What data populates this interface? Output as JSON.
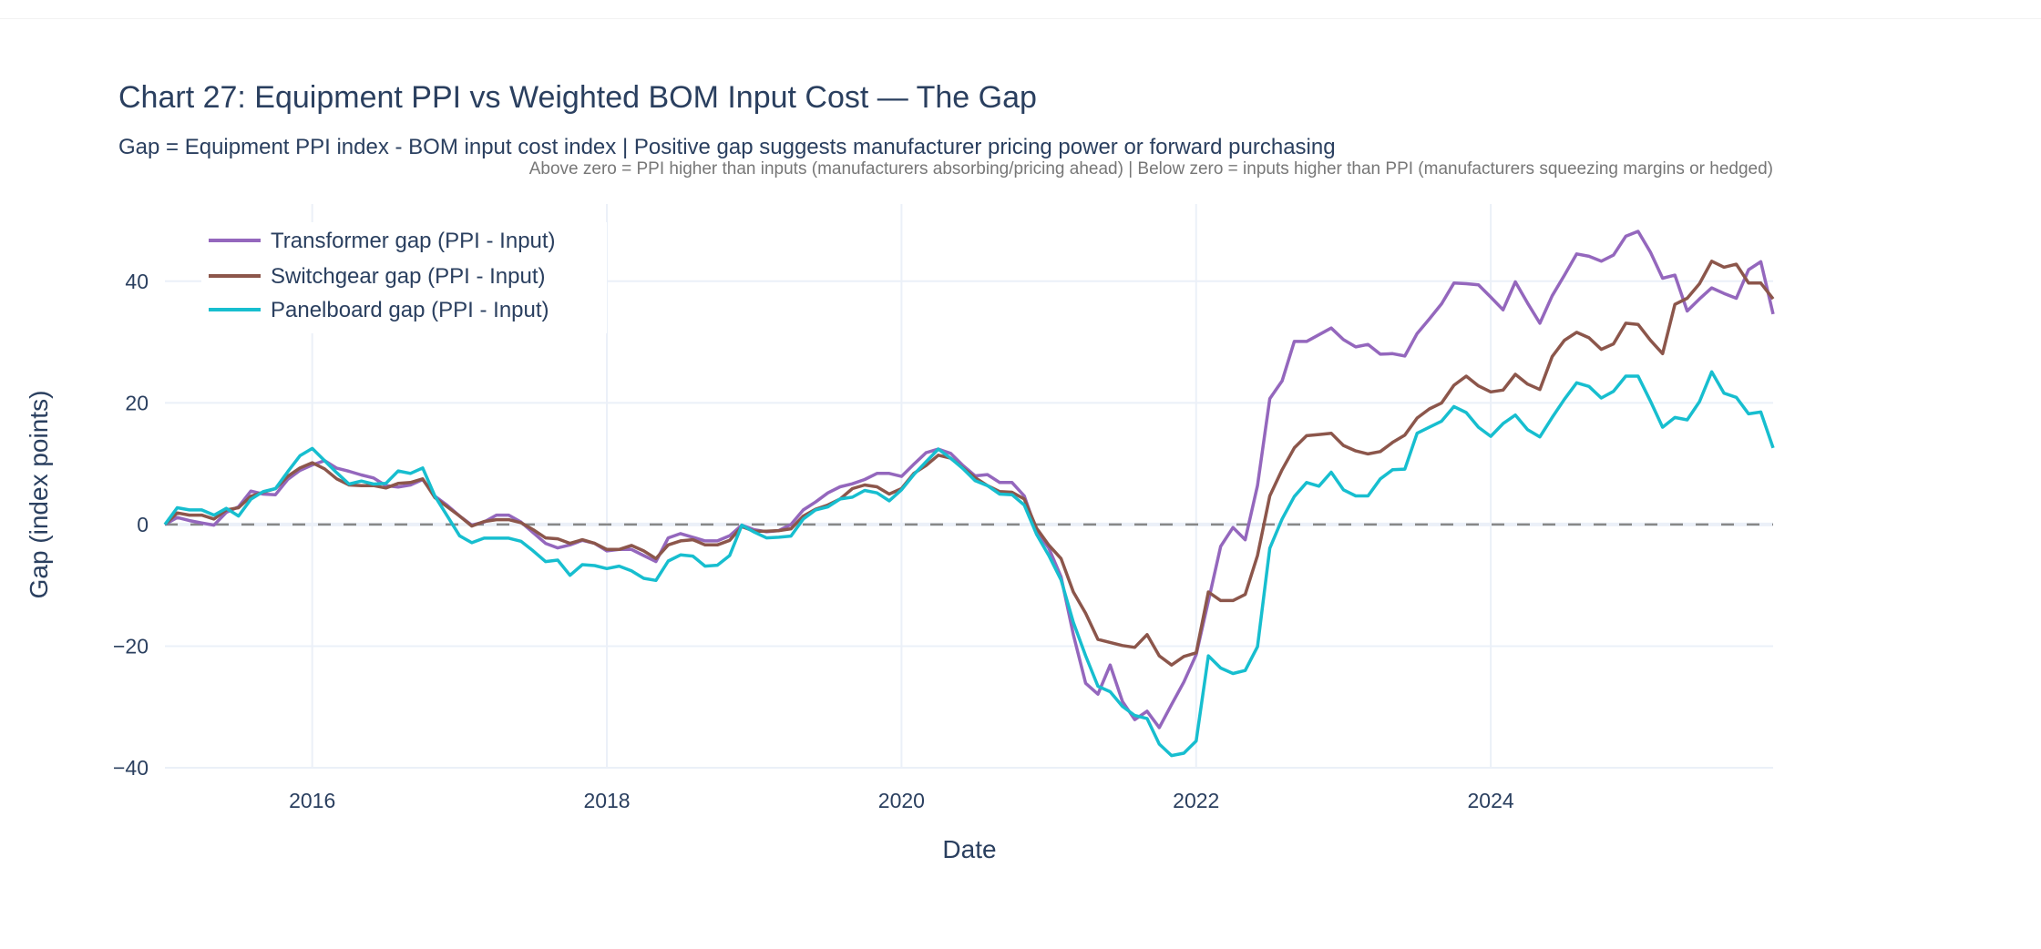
{
  "chart_data": {
    "type": "line",
    "title": "Chart 27: Equipment PPI vs Weighted BOM Input Cost — The Gap",
    "subtitle": "Gap = Equipment PPI index - BOM input cost index | Positive gap suggests manufacturer pricing power or forward purchasing",
    "annotation": "Above zero = PPI higher than inputs (manufacturers absorbing/pricing ahead) | Below zero = inputs higher than PPI (manufacturers squeezing margins or hedged)",
    "xlabel": "Date",
    "ylabel": "Gap (index points)",
    "x_start": "2015-01",
    "x_frequency": "monthly",
    "x_ticks": [
      "2016",
      "2018",
      "2020",
      "2022",
      "2024"
    ],
    "y_ticks": [
      -40,
      -20,
      0,
      20,
      40
    ],
    "y_tick_labels": [
      "−40",
      "−20",
      "0",
      "20",
      "40"
    ],
    "ylim": [
      -40,
      52.7
    ],
    "grid": true,
    "reference_line": {
      "y": 0,
      "style": "dashed",
      "color": "#888888"
    },
    "legend_placement": "top-left",
    "series": [
      {
        "name": "Transformer gap (PPI - Input)",
        "color": "#9467bd",
        "values": [
          0,
          1.15,
          0.65,
          0.25,
          -0.1,
          2,
          2.9,
          5.5,
          5,
          4.9,
          7.4,
          8.9,
          9.8,
          10.5,
          9.25,
          8.75,
          8.15,
          7.65,
          6.4,
          6.15,
          6.5,
          7.4,
          4.65,
          3.15,
          1.4,
          -0.1,
          0.4,
          1.55,
          1.55,
          0.4,
          -1.35,
          -3.1,
          -3.85,
          -3.35,
          -2.6,
          -3.1,
          -4.35,
          -4.1,
          -4.1,
          -5.1,
          -6.1,
          -2.2,
          -1.5,
          -2.1,
          -2.7,
          -2.7,
          -1.85,
          -0.1,
          -0.85,
          -1.2,
          -1,
          0,
          2.4,
          3.7,
          5.2,
          6.2,
          6.7,
          7.4,
          8.4,
          8.4,
          7.9,
          9.9,
          11.8,
          12.4,
          11.7,
          9.7,
          8.0,
          8.2,
          6.9,
          6.9,
          4.7,
          -1.1,
          -3.9,
          -8.6,
          -18.1,
          -26.1,
          -27.9,
          -23.1,
          -29.1,
          -32.1,
          -30.7,
          -33.4,
          -29.6,
          -25.9,
          -21.4,
          -12.6,
          -3.6,
          -0.5,
          -2.5,
          6.4,
          20.7,
          23.6,
          30.1,
          30.1,
          31.2,
          32.3,
          30.4,
          29.2,
          29.6,
          28.0,
          28.1,
          27.7,
          31.4,
          33.8,
          36.3,
          39.7,
          39.6,
          39.4,
          37.4,
          35.3,
          39.9,
          36.4,
          33.1,
          37.6,
          41.0,
          44.5,
          44.1,
          43.3,
          44.3,
          47.4,
          48.2,
          44.8,
          40.5,
          41.0,
          35.1,
          37.1,
          38.9,
          38.0,
          37.2,
          41.9,
          43.2,
          34.6
        ]
      },
      {
        "name": "Switchgear gap (PPI - Input)",
        "color": "#8c564b",
        "values": [
          0,
          1.9,
          1.55,
          1.55,
          0.9,
          2.4,
          2.75,
          4.65,
          5.3,
          5.9,
          7.9,
          9.3,
          10.15,
          9.15,
          7.5,
          6.5,
          6.4,
          6.4,
          6,
          6.75,
          6.9,
          7.5,
          4.4,
          2.9,
          1.4,
          -0.25,
          0.5,
          0.8,
          0.8,
          0.3,
          -0.85,
          -2.2,
          -2.35,
          -3.1,
          -2.5,
          -3.1,
          -4.1,
          -4.1,
          -3.45,
          -4.35,
          -5.6,
          -3.35,
          -2.7,
          -2.5,
          -3.35,
          -3.35,
          -2.6,
          -0.35,
          -1.1,
          -1.1,
          -1.0,
          -0.7,
          1.4,
          2.5,
          3.2,
          4.2,
          5.9,
          6.5,
          6.2,
          5.0,
          5.9,
          8.4,
          9.7,
          11.4,
          10.9,
          9.3,
          7.7,
          6.4,
          5.4,
          5.3,
          4.2,
          -0.6,
          -3.4,
          -5.6,
          -11.1,
          -14.6,
          -18.9,
          -19.4,
          -19.9,
          -20.2,
          -18.1,
          -21.6,
          -23.1,
          -21.7,
          -21.1,
          -11.1,
          -12.5,
          -12.5,
          -11.5,
          -5.1,
          4.7,
          9.0,
          12.6,
          14.6,
          14.8,
          15.0,
          13.0,
          12.1,
          11.6,
          12.0,
          13.5,
          14.7,
          17.5,
          19.0,
          20.0,
          22.9,
          24.4,
          22.8,
          21.8,
          22.1,
          24.7,
          23.1,
          22.2,
          27.6,
          30.3,
          31.6,
          30.7,
          28.8,
          29.7,
          33.1,
          32.9,
          30.3,
          28.1,
          36.2,
          37.2,
          39.6,
          43.3,
          42.3,
          42.8,
          39.7,
          39.7,
          37.1
        ]
      },
      {
        "name": "Panelboard gap (PPI - Input)",
        "color": "#17becf",
        "values": [
          0,
          2.75,
          2.4,
          2.4,
          1.55,
          2.65,
          1.4,
          4.15,
          5.4,
          5.9,
          8.65,
          11.3,
          12.5,
          10.5,
          8.5,
          6.65,
          7.15,
          6.65,
          6.75,
          8.8,
          8.4,
          9.3,
          4.65,
          1.4,
          -1.85,
          -3,
          -2.25,
          -2.25,
          -2.25,
          -2.75,
          -4.35,
          -6.1,
          -5.85,
          -8.35,
          -6.6,
          -6.75,
          -7.25,
          -6.85,
          -7.6,
          -8.85,
          -9.2,
          -6,
          -5,
          -5.2,
          -6.85,
          -6.7,
          -5.1,
          -0.1,
          -1.25,
          -2.2,
          -2.1,
          -1.9,
          0.9,
          2.4,
          2.9,
          4.2,
          4.5,
          5.6,
          5.2,
          3.9,
          5.7,
          8.2,
          10.3,
          12.4,
          10.9,
          9.2,
          7.2,
          6.4,
          5.0,
          4.9,
          3.2,
          -1.6,
          -5.1,
          -9.1,
          -16.1,
          -21.6,
          -26.6,
          -27.5,
          -29.9,
          -31.4,
          -31.9,
          -36.1,
          -38,
          -37.6,
          -35.6,
          -21.6,
          -23.6,
          -24.5,
          -24,
          -20.1,
          -3.9,
          0.9,
          4.6,
          6.9,
          6.3,
          8.6,
          5.7,
          4.7,
          4.7,
          7.5,
          9.0,
          9.1,
          15.0,
          16.0,
          17.0,
          19.4,
          18.4,
          16.0,
          14.5,
          16.6,
          18.0,
          15.6,
          14.4,
          17.6,
          20.6,
          23.3,
          22.7,
          20.8,
          21.9,
          24.4,
          24.4,
          20.3,
          16.0,
          17.6,
          17.2,
          20.2,
          25.1,
          21.6,
          20.9,
          18.2,
          18.5,
          12.6
        ]
      }
    ]
  }
}
